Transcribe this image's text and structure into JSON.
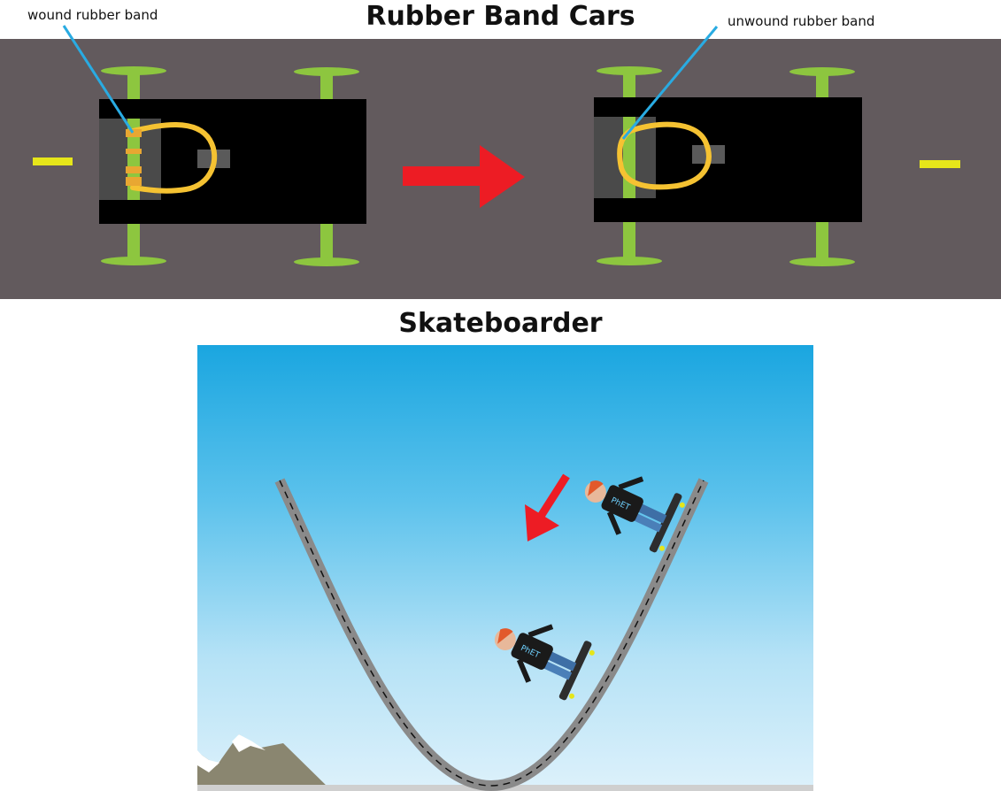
{
  "titles": {
    "rubber_band_cars": "Rubber Band Cars",
    "skateboarder": "Skateboarder"
  },
  "labels": {
    "wound": "wound rubber band",
    "unwound": "unwound rubber band"
  },
  "colors": {
    "road": "#625a5d",
    "car_body": "#000000",
    "wheel": "#8dc63f",
    "rubber_band": "#f5c232",
    "callout_line": "#29abe2",
    "direction_arrow": "#ed1c24",
    "lane_marker": "#e6e61a",
    "sky_top": "#1aa6e0",
    "sky_bottom": "#ddf1fb",
    "ramp": "#8a8a8a"
  },
  "skater": {
    "shirt_text": "PhET"
  }
}
